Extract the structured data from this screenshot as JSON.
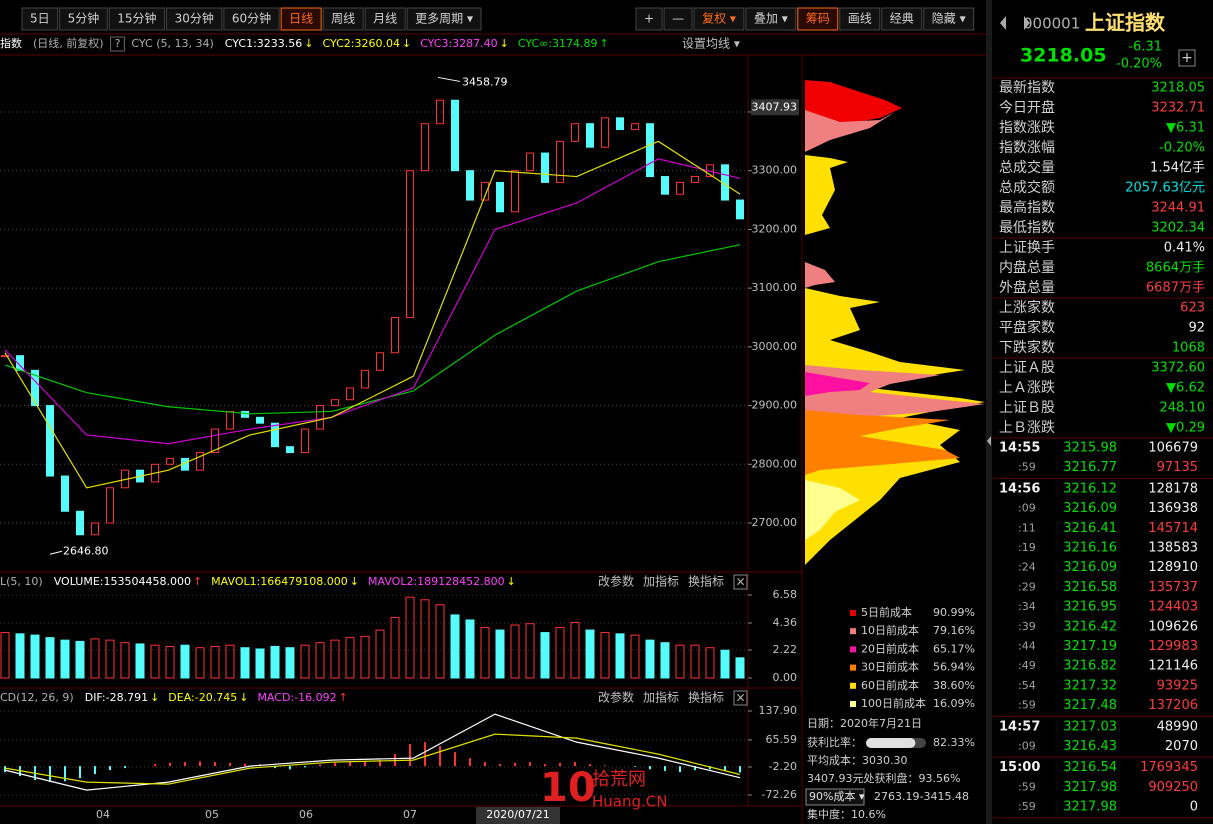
{
  "toolbar": {
    "left": [
      "5日",
      "5分钟",
      "15分钟",
      "30分钟",
      "60分钟",
      "日线",
      "周线",
      "月线",
      "更多周期 ▾"
    ],
    "active_left": 5,
    "right": [
      "+",
      "—",
      "复权 ▾",
      "叠加 ▾",
      "筹码",
      "画线",
      "经典",
      "隐藏 ▾"
    ],
    "active_right": 4,
    "accent_right": 2
  },
  "legend": {
    "items": [
      {
        "text": "指数",
        "color": "#ffffff"
      },
      {
        "text": "(日线, 前复权)",
        "color": "#b0b0b0"
      },
      {
        "text": "?",
        "color": "#b0b0b0",
        "boxed": true
      },
      {
        "text": "CYC (5, 13, 34)",
        "color": "#b0b0b0"
      },
      {
        "text": "CYC1:3233.56",
        "color": "#ffffff",
        "arrow": "↓",
        "arrow_color": "#ffff00"
      },
      {
        "text": "CYC2:3260.04",
        "color": "#ffff00",
        "arrow": "↓",
        "arrow_color": "#ffff00"
      },
      {
        "text": "CYC3:3287.40",
        "color": "#ff40ff",
        "arrow": "↓",
        "arrow_color": "#ffff00"
      },
      {
        "text": "CYC∞:3174.89",
        "color": "#00e000",
        "arrow": "↑",
        "arrow_color": "#00e000"
      }
    ],
    "settings": "设置均线 ▾"
  },
  "price_chart": {
    "type": "candlestick",
    "up_color": "#ff3232",
    "down_color": "#54fcfc",
    "closes": [
      2985,
      2960,
      2900,
      2780,
      2720,
      2680,
      2700,
      2760,
      2790,
      2770,
      2800,
      2810,
      2790,
      2820,
      2860,
      2890,
      2880,
      2870,
      2830,
      2820,
      2860,
      2900,
      2910,
      2930,
      2960,
      2990,
      3050,
      3300,
      3380,
      3420,
      3300,
      3250,
      3280,
      3230,
      3300,
      3330,
      3280,
      3350,
      3380,
      3340,
      3390,
      3370,
      3380,
      3290,
      3260,
      3280,
      3290,
      3310,
      3250,
      3218
    ],
    "lines": [
      {
        "color": "#00c800",
        "values": [
          2969,
          2922,
          2898,
          2886,
          2890,
          2925,
          3020,
          3095,
          3145,
          3174
        ]
      },
      {
        "color": "#d000d0",
        "values": [
          2995,
          2850,
          2835,
          2860,
          2880,
          2930,
          3200,
          3245,
          3320,
          3287
        ]
      },
      {
        "color": "#e0e000",
        "values": [
          2990,
          2760,
          2790,
          2850,
          2880,
          2950,
          3300,
          3290,
          3350,
          3260
        ]
      }
    ],
    "ylim": [
      2620,
      3497
    ],
    "yticks": [
      {
        "value": 2700,
        "label": "2700.00"
      },
      {
        "value": 2800,
        "label": "2800.00"
      },
      {
        "value": 2900,
        "label": "2900.00"
      },
      {
        "value": 3000,
        "label": "3000.00"
      },
      {
        "value": 3100,
        "label": "3100.00"
      },
      {
        "value": 3200,
        "label": "3200.00"
      },
      {
        "value": 3300,
        "label": "3300.00"
      },
      {
        "value": 3400,
        "label": "3400.00"
      }
    ],
    "current": 3407.93,
    "high": 3458.79,
    "low": {
      "value": 2646.8,
      "label": "2646.80"
    },
    "x_labels": [
      "04",
      "05",
      "06",
      "07"
    ],
    "cursor_date": "2020/07/21"
  },
  "volume_chart": {
    "type": "bar",
    "header": [
      {
        "text": "L(5, 10)",
        "color": "#b0b0b0"
      },
      {
        "text": "VOLUME:153504458.000",
        "color": "#ffffff",
        "arrow": "↑",
        "arrow_color": "#ff3232"
      },
      {
        "text": "MAVOL1:166479108.000",
        "color": "#ffff00",
        "arrow": "↓",
        "arrow_color": "#ffff00"
      },
      {
        "text": "MAVOL2:189128452.800",
        "color": "#ff40ff",
        "arrow": "↓",
        "arrow_color": "#ffff00"
      }
    ],
    "values": [
      3.6,
      3.5,
      3.4,
      3.2,
      3.0,
      2.9,
      3.1,
      3.0,
      2.8,
      2.7,
      2.6,
      2.5,
      2.6,
      2.4,
      2.5,
      2.6,
      2.4,
      2.3,
      2.5,
      2.4,
      2.6,
      2.8,
      3.0,
      3.2,
      3.3,
      3.8,
      4.8,
      6.4,
      6.2,
      5.8,
      5.0,
      4.6,
      4.0,
      3.8,
      4.2,
      4.3,
      3.6,
      4.0,
      4.4,
      3.8,
      3.6,
      3.5,
      3.4,
      3.0,
      2.8,
      2.6,
      2.6,
      2.4,
      2.2,
      1.6
    ],
    "ylim": [
      0,
      7.37
    ],
    "yticks": [
      6.58,
      4.36,
      2.22,
      {
        "value": 0,
        "label": "0.00"
      }
    ],
    "buttons": [
      "改参数",
      "加指标",
      "换指标"
    ],
    "close": "×"
  },
  "macd_chart": {
    "type": "bar",
    "header": [
      {
        "text": "CD(12, 26, 9)",
        "color": "#b0b0b0"
      },
      {
        "text": "DIF:-28.791",
        "color": "#ffffff",
        "arrow": "↓",
        "arrow_color": "#ffff00"
      },
      {
        "text": "DEA:-20.745",
        "color": "#ffff00",
        "arrow": "↓",
        "arrow_color": "#ffff00"
      },
      {
        "text": "MACD:-16.092",
        "color": "#ff40ff",
        "arrow": "↑",
        "arrow_color": "#ff3232"
      }
    ],
    "values": [
      -15,
      -25,
      -35,
      -40,
      -38,
      -30,
      -20,
      -10,
      -5,
      0,
      5,
      8,
      10,
      12,
      10,
      8,
      6,
      5,
      -5,
      -8,
      -3,
      4,
      8,
      10,
      12,
      15,
      30,
      55,
      60,
      50,
      35,
      20,
      10,
      5,
      8,
      10,
      5,
      8,
      10,
      5,
      2,
      0,
      -2,
      -8,
      -12,
      -15,
      -10,
      -8,
      -12,
      -16
    ],
    "dif": [
      -10,
      -60,
      -40,
      0,
      15,
      20,
      130,
      60,
      20,
      -29
    ],
    "dea": [
      -5,
      -40,
      -45,
      -5,
      10,
      15,
      80,
      70,
      30,
      -21
    ],
    "ylim": [
      -84.77,
      152.91
    ],
    "yticks": [
      {
        "value": 137.9,
        "label": "137.90"
      },
      65.59,
      {
        "value": -2.2,
        "label": "-2.20"
      },
      -72.26
    ],
    "buttons": [
      "改参数",
      "加指标",
      "换指标"
    ],
    "close": "×"
  },
  "chip_legend": [
    {
      "label": "5日前成本",
      "value": "90.99%",
      "color": "#e00000"
    },
    {
      "label": "10日前成本",
      "value": "79.16%",
      "color": "#f08080"
    },
    {
      "label": "20日前成本",
      "value": "65.17%",
      "color": "#ff10a0"
    },
    {
      "label": "30日前成本",
      "value": "56.94%",
      "color": "#ff8000"
    },
    {
      "label": "60日前成本",
      "value": "38.60%",
      "color": "#ffe000"
    },
    {
      "label": "100日前成本",
      "value": "16.09%",
      "color": "#ffff90"
    }
  ],
  "chip_info": {
    "date": "日期：2020年7月21日",
    "profit_label": "获利比率：",
    "profit_ratio": {
      "value": 82.33,
      "label": "82.33%"
    },
    "avg_cost": "平均成本：3030.30",
    "profit_at": "3407.93元处获利盘：93.56%",
    "cost_select": "90%成本 ▾",
    "cost_range": "2763.19-3415.48",
    "concentration": "集中度：10.6%"
  },
  "watermark": {
    "number": "10",
    "name": "拾荒网",
    "domain": "Huang.CN"
  },
  "quote": {
    "code": "000001",
    "name": "上证指数",
    "price": "3218.05",
    "change": "-6.31",
    "change_pct": "-0.20%",
    "add": "+",
    "groups": [
      [
        {
          "label": "最新指数",
          "value": "3218.05",
          "color": "#00e000"
        },
        {
          "label": "今日开盘",
          "value": "3232.71",
          "color": "#ff3c3c"
        },
        {
          "label": "指数涨跌",
          "value": "▼6.31",
          "color": "#00e000"
        },
        {
          "label": "指数涨幅",
          "value": "-0.20%",
          "color": "#00e000"
        },
        {
          "label": "总成交量",
          "value": "1.54亿手",
          "color": "#f0f0f0"
        },
        {
          "label": "总成交额",
          "value": "2057.63亿元",
          "color": "#00e0e0"
        },
        {
          "label": "最高指数",
          "value": "3244.91",
          "color": "#ff3c3c"
        },
        {
          "label": "最低指数",
          "value": "3202.34",
          "color": "#00e000"
        }
      ],
      [
        {
          "label": "上证换手",
          "value": "0.41%",
          "color": "#f0f0f0"
        },
        {
          "label": "内盘总量",
          "value": "8664万手",
          "color": "#00e000"
        },
        {
          "label": "外盘总量",
          "value": "6687万手",
          "color": "#ff3c3c"
        }
      ],
      [
        {
          "label": "上涨家数",
          "value": "623",
          "color": "#ff3c3c"
        },
        {
          "label": "平盘家数",
          "value": "92",
          "color": "#f0f0f0"
        },
        {
          "label": "下跌家数",
          "value": "1068",
          "color": "#00e000"
        }
      ],
      [
        {
          "label": "上证Ａ股",
          "value": "3372.60",
          "color": "#00e000"
        },
        {
          "label": "上Ａ涨跌",
          "value": "▼6.62",
          "color": "#00e000"
        },
        {
          "label": "上证Ｂ股",
          "value": "248.10",
          "color": "#00e000"
        },
        {
          "label": "上Ｂ涨跌",
          "value": "▼0.29",
          "color": "#00e000"
        }
      ]
    ]
  },
  "trades": {
    "groups": [
      [
        {
          "time": "14:55",
          "price": "3215.98",
          "volume": "106679",
          "color": "#f0f0f0"
        },
        {
          "time": ":59",
          "price": "3216.77",
          "volume": "97135",
          "color": "#ff3c3c"
        }
      ],
      [
        {
          "time": "14:56",
          "price": "3216.12",
          "volume": "128178",
          "color": "#f0f0f0"
        },
        {
          "time": ":09",
          "price": "3216.09",
          "volume": "136938",
          "color": "#f0f0f0"
        },
        {
          "time": ":11",
          "price": "3216.41",
          "volume": "145714",
          "color": "#ff3c3c"
        },
        {
          "time": ":19",
          "price": "3216.16",
          "volume": "138583",
          "color": "#f0f0f0"
        },
        {
          "time": ":24",
          "price": "3216.09",
          "volume": "128910",
          "color": "#f0f0f0"
        },
        {
          "time": ":29",
          "price": "3216.58",
          "volume": "135737",
          "color": "#ff3c3c"
        },
        {
          "time": ":34",
          "price": "3216.95",
          "volume": "124403",
          "color": "#ff3c3c"
        },
        {
          "time": ":39",
          "price": "3216.42",
          "volume": "109626",
          "color": "#f0f0f0"
        },
        {
          "time": ":44",
          "price": "3217.19",
          "volume": "129983",
          "color": "#ff3c3c"
        },
        {
          "time": ":49",
          "price": "3216.82",
          "volume": "121146",
          "color": "#f0f0f0"
        },
        {
          "time": ":54",
          "price": "3217.32",
          "volume": "93925",
          "color": "#ff3c3c"
        },
        {
          "time": ":59",
          "price": "3217.48",
          "volume": "137206",
          "color": "#ff3c3c"
        }
      ],
      [
        {
          "time": "14:57",
          "price": "3217.03",
          "volume": "48990",
          "color": "#f0f0f0"
        },
        {
          "time": ":09",
          "price": "3216.43",
          "volume": "2070",
          "color": "#f0f0f0"
        }
      ],
      [
        {
          "time": "15:00",
          "price": "3216.54",
          "volume": "1769345",
          "color": "#ff3c3c"
        },
        {
          "time": ":59",
          "price": "3217.98",
          "volume": "909250",
          "color": "#ff3c3c"
        },
        {
          "time": ":59",
          "price": "3217.98",
          "volume": "0",
          "color": "#f0f0f0"
        }
      ]
    ]
  }
}
